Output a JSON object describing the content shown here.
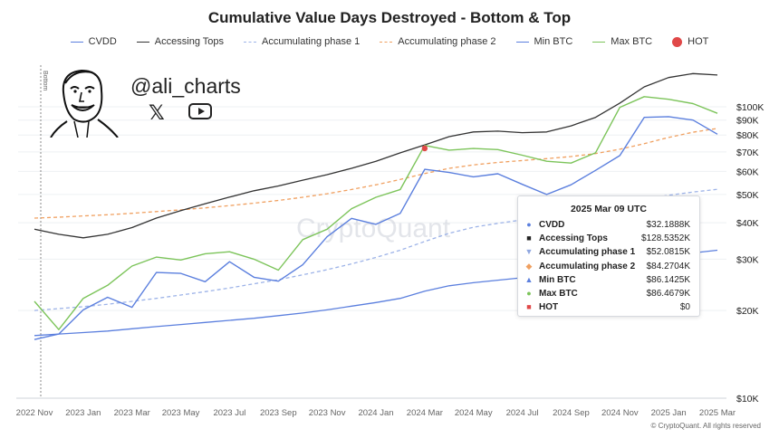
{
  "title": "Cumulative Value Days Destroyed - Bottom & Top",
  "legend": [
    {
      "label": "CVDD",
      "color": "#5b7fde",
      "style": "line"
    },
    {
      "label": "Accessing Tops",
      "color": "#333333",
      "style": "line"
    },
    {
      "label": "Accumulating phase 1",
      "color": "#9db3e8",
      "style": "dashed"
    },
    {
      "label": "Accumulating phase 2",
      "color": "#f0a060",
      "style": "dashed"
    },
    {
      "label": "Min BTC",
      "color": "#5b7fde",
      "style": "line"
    },
    {
      "label": "Max BTC",
      "color": "#7cc45a",
      "style": "line"
    },
    {
      "label": "HOT",
      "color": "#e04848",
      "style": "dot"
    }
  ],
  "branding": {
    "handle": "@ali_charts",
    "x_icon": "x-logo-icon",
    "youtube_icon": "youtube-icon",
    "avatar": "avatar-icon",
    "watermark": "CryptoQuant",
    "copyright": "© CryptoQuant. All rights reserved",
    "bottom_marker": "Bottom"
  },
  "tooltip": {
    "date": "2025 Mar 09 UTC",
    "rows": [
      {
        "label": "CVDD",
        "value": "$32.1888K",
        "marker": "circle",
        "color": "#5b7fde"
      },
      {
        "label": "Accessing Tops",
        "value": "$128.5352K",
        "marker": "square",
        "color": "#222222"
      },
      {
        "label": "Accumulating phase 1",
        "value": "$52.0815K",
        "marker": "triangle-down",
        "color": "#8fa7e0"
      },
      {
        "label": "Accumulating phase 2",
        "value": "$84.2704K",
        "marker": "diamond",
        "color": "#f0a060"
      },
      {
        "label": "Min BTC",
        "value": "$86.1425K",
        "marker": "triangle-up",
        "color": "#5b7fde"
      },
      {
        "label": "Max BTC",
        "value": "$86.4679K",
        "marker": "circle",
        "color": "#7cc45a"
      },
      {
        "label": "HOT",
        "value": "$0",
        "marker": "square",
        "color": "#e04848"
      }
    ]
  },
  "chart_data": {
    "type": "line",
    "title": "Cumulative Value Days Destroyed - Bottom & Top",
    "y_scale": "log",
    "ylim": [
      10000,
      140000
    ],
    "y_ticks": [
      {
        "value": 10000,
        "label": "$10K"
      },
      {
        "value": 20000,
        "label": "$20K"
      },
      {
        "value": 30000,
        "label": "$30K"
      },
      {
        "value": 40000,
        "label": "$40K"
      },
      {
        "value": 50000,
        "label": "$50K"
      },
      {
        "value": 60000,
        "label": "$60K"
      },
      {
        "value": 70000,
        "label": "$70K"
      },
      {
        "value": 80000,
        "label": "$80K"
      },
      {
        "value": 90000,
        "label": "$90K"
      },
      {
        "value": 100000,
        "label": "$100K"
      }
    ],
    "x_ticks": [
      "2022 Nov",
      "2023 Jan",
      "2023 Mar",
      "2023 May",
      "2023 Jul",
      "2023 Sep",
      "2023 Nov",
      "2024 Jan",
      "2024 Mar",
      "2024 May",
      "2024 Jul",
      "2024 Sep",
      "2024 Nov",
      "2025 Jan",
      "2025 Mar"
    ],
    "x": [
      "2022 Nov",
      "2022 Dec",
      "2023 Jan",
      "2023 Feb",
      "2023 Mar",
      "2023 Apr",
      "2023 May",
      "2023 Jun",
      "2023 Jul",
      "2023 Aug",
      "2023 Sep",
      "2023 Oct",
      "2023 Nov",
      "2023 Dec",
      "2024 Jan",
      "2024 Feb",
      "2024 Mar",
      "2024 Apr",
      "2024 May",
      "2024 Jun",
      "2024 Jul",
      "2024 Aug",
      "2024 Sep",
      "2024 Oct",
      "2024 Nov",
      "2024 Dec",
      "2025 Jan",
      "2025 Feb",
      "2025 Mar"
    ],
    "series": [
      {
        "name": "CVDD",
        "color": "#5b7fde",
        "dash": "",
        "values": [
          16400,
          16600,
          16800,
          17000,
          17300,
          17600,
          17900,
          18200,
          18500,
          18800,
          19200,
          19600,
          20100,
          20700,
          21300,
          22000,
          23300,
          24300,
          24900,
          25400,
          25900,
          26600,
          27300,
          28100,
          29000,
          29900,
          30800,
          31500,
          32200
        ]
      },
      {
        "name": "Accessing Tops",
        "color": "#333333",
        "dash": "",
        "values": [
          38000,
          36500,
          35500,
          36500,
          38500,
          41500,
          44000,
          46500,
          49000,
          51500,
          53500,
          56000,
          58500,
          61500,
          65000,
          69500,
          74000,
          79000,
          82000,
          82500,
          81500,
          82000,
          86000,
          92000,
          103000,
          117000,
          126000,
          130000,
          128500
        ]
      },
      {
        "name": "Accumulating phase 1",
        "color": "#9db3e8",
        "dash": "4,3",
        "values": [
          20000,
          20300,
          20600,
          21000,
          21500,
          22000,
          22600,
          23200,
          23900,
          24700,
          25500,
          26500,
          27600,
          28900,
          30400,
          32200,
          34500,
          36800,
          38600,
          39800,
          40900,
          42100,
          43400,
          44800,
          46400,
          48100,
          49700,
          51000,
          52100
        ]
      },
      {
        "name": "Accumulating phase 2",
        "color": "#f0a060",
        "dash": "4,3",
        "values": [
          41500,
          41800,
          42200,
          42600,
          43100,
          43700,
          44300,
          45000,
          45800,
          46700,
          47700,
          48900,
          50300,
          52000,
          54000,
          56300,
          59000,
          61500,
          63200,
          64400,
          65400,
          66400,
          67500,
          69100,
          71500,
          74700,
          78500,
          81800,
          84300
        ]
      },
      {
        "name": "Min BTC",
        "color": "#5b7fde",
        "dash": "",
        "values": [
          15900,
          16600,
          20100,
          22200,
          20500,
          27000,
          26800,
          25100,
          29400,
          26000,
          25200,
          28700,
          35800,
          41400,
          39500,
          43100,
          61000,
          59500,
          57500,
          58900,
          54200,
          50000,
          54000,
          60500,
          68000,
          92000,
          92500,
          90000,
          80500
        ]
      },
      {
        "name": "Max BTC",
        "color": "#7cc45a",
        "dash": "",
        "values": [
          21500,
          17200,
          22000,
          24400,
          28400,
          30500,
          29800,
          31300,
          31800,
          30000,
          27500,
          35000,
          38000,
          44700,
          48900,
          52000,
          73700,
          71000,
          71900,
          71300,
          68200,
          65000,
          64100,
          69500,
          99600,
          108300,
          106100,
          102500,
          95000
        ]
      }
    ],
    "hot_points": [
      {
        "x": "2024 Mar",
        "y": 72000
      }
    ]
  }
}
